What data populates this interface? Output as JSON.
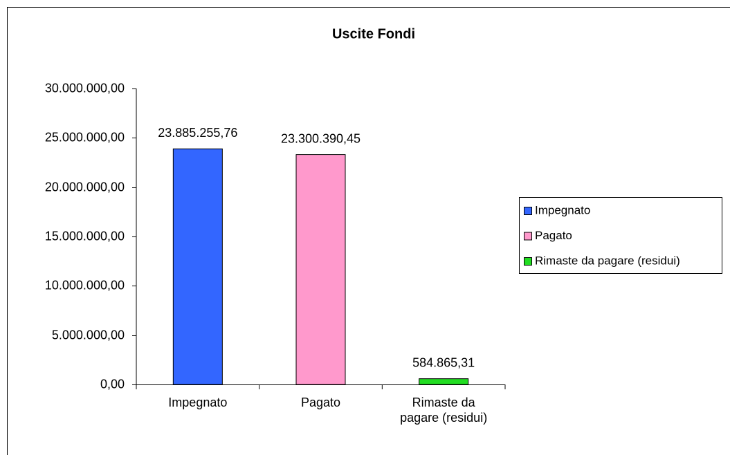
{
  "chart_data": {
    "type": "bar",
    "title": "Uscite Fondi",
    "categories": [
      "Impegnato",
      "Pagato",
      "Rimaste da pagare (residui)"
    ],
    "values": [
      23885255.76,
      23300390.45,
      584865.31
    ],
    "value_labels": [
      "23.885.255,76",
      "23.300.390,45",
      "584.865,31"
    ],
    "colors": [
      "#3366ff",
      "#ff99cc",
      "#22dd22"
    ],
    "ylim": [
      0,
      30000000
    ],
    "yticks": [
      {
        "value": 0,
        "label": "0,00"
      },
      {
        "value": 5000000,
        "label": "5.000.000,00"
      },
      {
        "value": 10000000,
        "label": "10.000.000,00"
      },
      {
        "value": 15000000,
        "label": "15.000.000,00"
      },
      {
        "value": 20000000,
        "label": "20.000.000,00"
      },
      {
        "value": 25000000,
        "label": "25.000.000,00"
      },
      {
        "value": 30000000,
        "label": "30.000.000,00"
      }
    ],
    "grid": false,
    "legend": "right"
  }
}
